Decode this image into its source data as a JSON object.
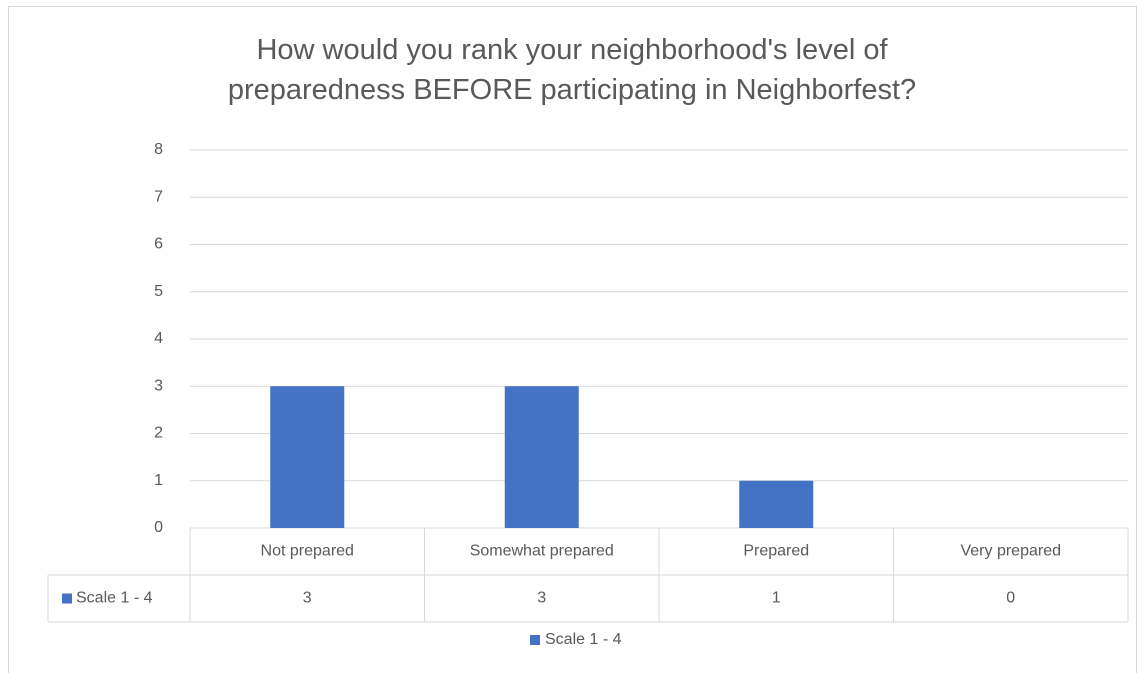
{
  "chart_data": {
    "type": "bar",
    "title": "How would you rank your neighborhood's level of preparedness BEFORE participating in Neighborfest?",
    "categories": [
      "Not prepared",
      "Somewhat prepared",
      "Prepared",
      "Very prepared"
    ],
    "series": [
      {
        "name": "Scale 1 - 4",
        "color": "#4472c4",
        "values": [
          3,
          3,
          1,
          0
        ]
      }
    ],
    "ylim": [
      0,
      8
    ],
    "yticks": [
      0,
      1,
      2,
      3,
      4,
      5,
      6,
      7,
      8
    ],
    "grid": true,
    "legend": "bottom"
  }
}
